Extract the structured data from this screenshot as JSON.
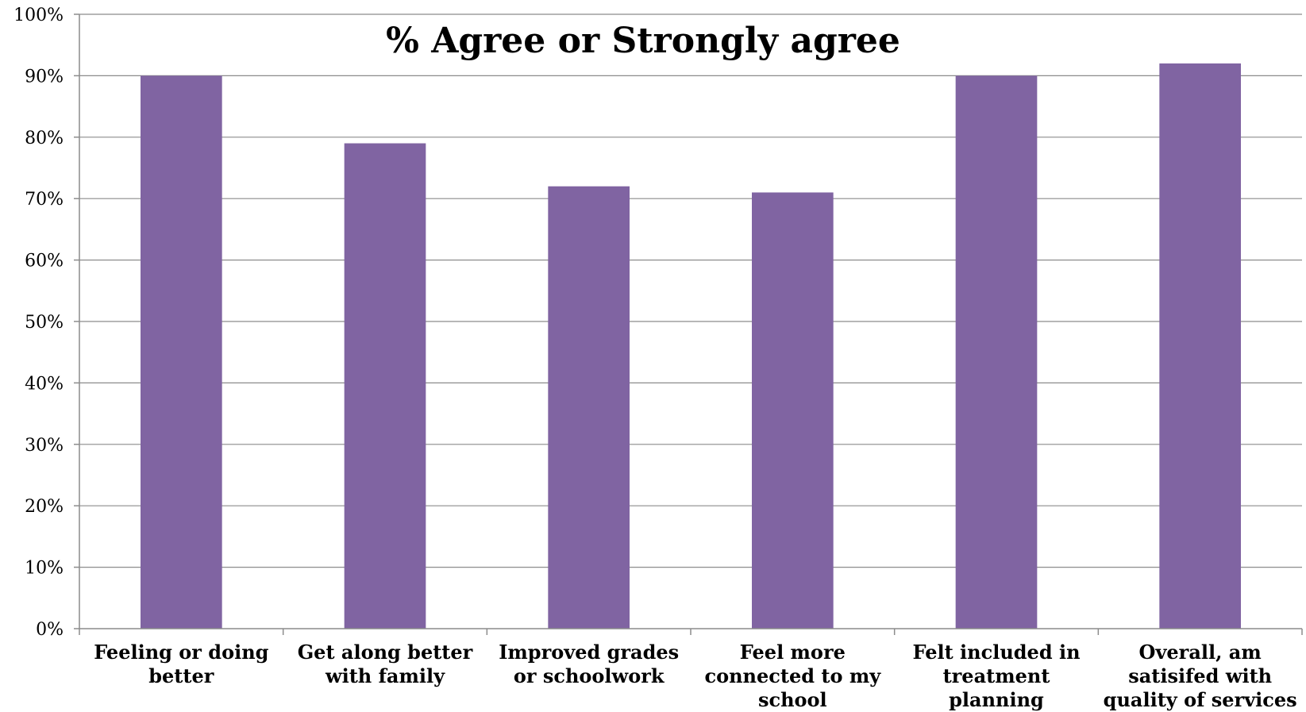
{
  "chart_data": {
    "type": "bar",
    "title": "% Agree or Strongly agree",
    "categories": [
      [
        "Feeling or doing",
        "better"
      ],
      [
        "Get along better",
        "with family"
      ],
      [
        "Improved grades",
        "or schoolwork"
      ],
      [
        "Feel more",
        "connected to my",
        "school"
      ],
      [
        "Felt included in",
        "treatment",
        "planning"
      ],
      [
        "Overall, am",
        "satisifed with",
        "quality of services"
      ]
    ],
    "values": [
      90,
      79,
      72,
      71,
      90,
      92
    ],
    "ylim": [
      0,
      100
    ],
    "yticks": [
      "0%",
      "10%",
      "20%",
      "30%",
      "40%",
      "50%",
      "60%",
      "70%",
      "80%",
      "90%",
      "100%"
    ],
    "bar_color": "#8064A2",
    "grid": true,
    "legend": "none",
    "xlabel": "",
    "ylabel": ""
  }
}
